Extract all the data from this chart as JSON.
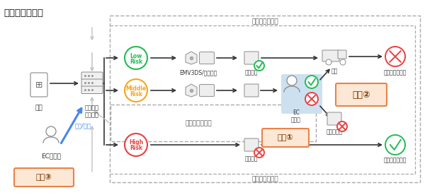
{
  "title": "運用型不正検知",
  "bg_color": "#ffffff",
  "feedback_top_label": "フィードバック",
  "feedback_mid_label": "フィードバック",
  "feedback_bot_label": "フィードバック",
  "low_risk_color": "#22bb55",
  "mid_risk_color": "#f5a623",
  "high_risk_color": "#e84040",
  "low_risk_label1": "Low",
  "low_risk_label2": "Risk",
  "mid_risk_label1": "Middle",
  "mid_risk_label2": "Risk",
  "high_risk_label1": "High",
  "high_risk_label2": "Risk",
  "emv_label": "EMV3DS/オーソリ",
  "order_accept_label": "注文受付",
  "order_reject_label": "注文拒否",
  "ship_label": "出荷",
  "cancel_label": "キャンセル",
  "ec_biz_label": "EC\n事業者",
  "juu1_label": "重要①",
  "juu2_label": "重要②",
  "juu3_label": "重要③",
  "chuu_label": "注文",
  "fusei_label": "不正検知\nサービス",
  "joho_label": "情報/知見",
  "ec_op_label": "EC事業者",
  "fusehi_fraud_label": "実は不正だった",
  "fusehi_real_label": "実は真正だった",
  "badge_edge_color": "#e8834a",
  "badge_face_color": "#fce8d5",
  "badge_text_color": "#7a3300",
  "check_color": "#22bb55",
  "cross_color": "#e84040",
  "arrow_dark": "#333333",
  "arrow_gray": "#999999",
  "arrow_blue": "#4488ee",
  "icon_edge": "#888888",
  "icon_face": "#f0f0f0"
}
